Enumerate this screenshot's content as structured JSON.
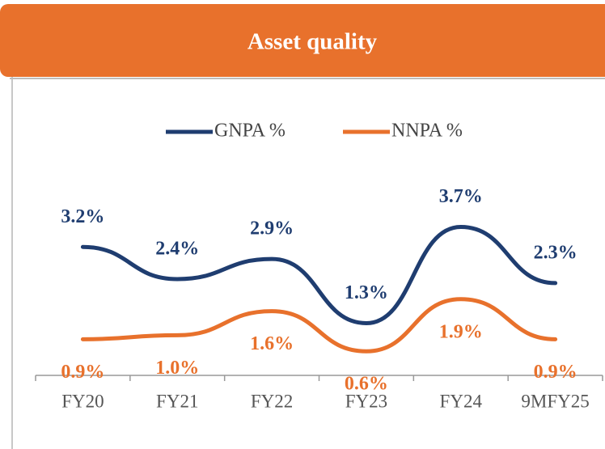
{
  "chart_data": {
    "type": "line",
    "title": "Asset quality",
    "categories": [
      "FY20",
      "FY21",
      "FY22",
      "FY23",
      "FY24",
      "9MFY25"
    ],
    "series": [
      {
        "name": "GNPA %",
        "color": "#1f3d70",
        "values": [
          3.2,
          2.4,
          2.9,
          1.3,
          3.7,
          2.3
        ],
        "value_labels": [
          "3.2%",
          "2.4%",
          "2.9%",
          "1.3%",
          "3.7%",
          "2.3%"
        ]
      },
      {
        "name": "NNPA %",
        "color": "#e8712c",
        "values": [
          0.9,
          1.0,
          1.6,
          0.6,
          1.9,
          0.9
        ],
        "value_labels": [
          "0.9%",
          "1.0%",
          "1.6%",
          "0.6%",
          "1.9%",
          "0.9%"
        ]
      }
    ],
    "ylim": [
      0,
      5
    ],
    "legend": "top",
    "grid": false
  }
}
